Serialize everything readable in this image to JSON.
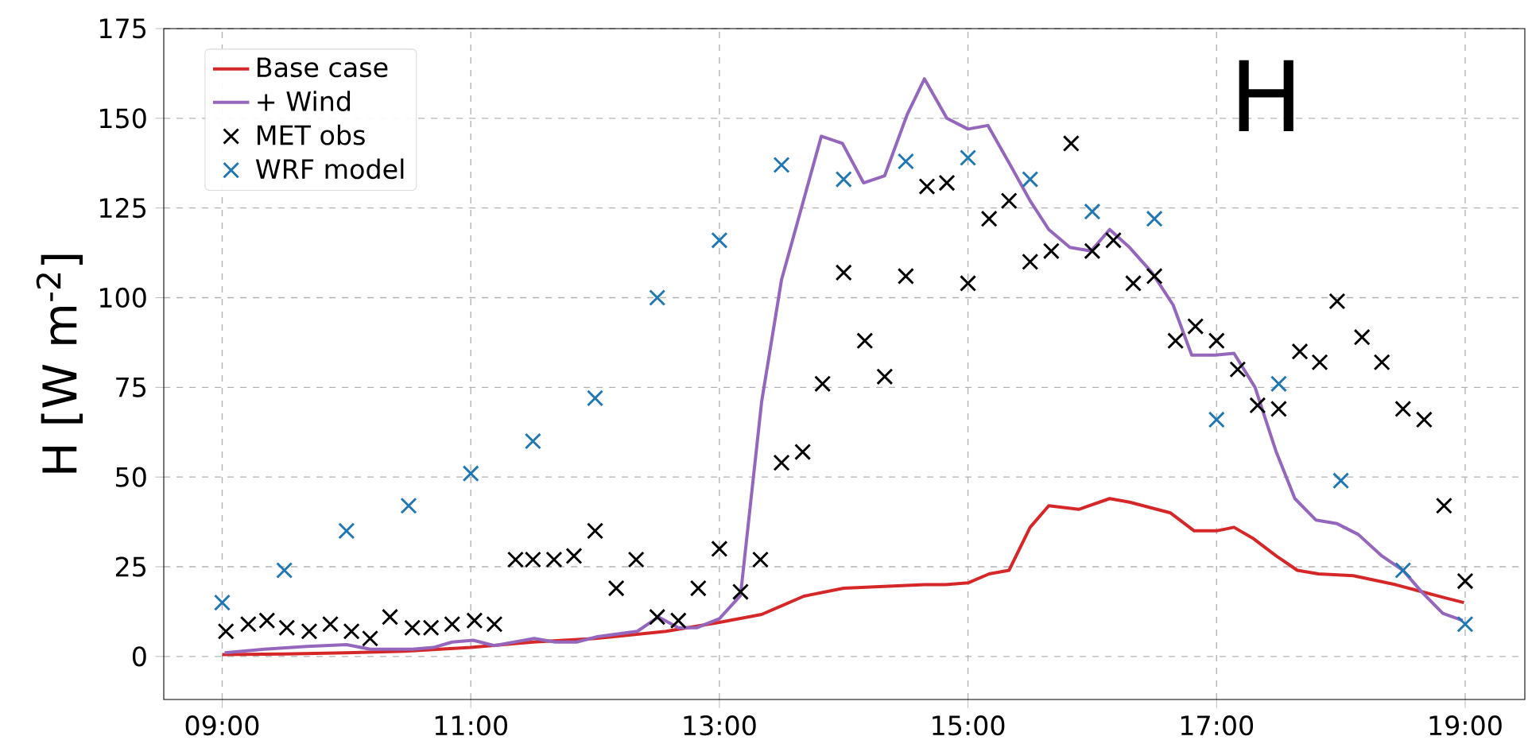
{
  "chart_data": {
    "type": "line",
    "ylabel": "H [W m$^{-2}$]",
    "annotations": [
      "H"
    ],
    "xlim": [
      8.53,
      19.48
    ],
    "ylim": [
      -12,
      175
    ],
    "xticks": [
      {
        "value": 9,
        "label": "09:00"
      },
      {
        "value": 11,
        "label": "11:00"
      },
      {
        "value": 13,
        "label": "13:00"
      },
      {
        "value": 15,
        "label": "15:00"
      },
      {
        "value": 17,
        "label": "17:00"
      },
      {
        "value": 19,
        "label": "19:00"
      }
    ],
    "yticks": [
      0,
      25,
      50,
      75,
      100,
      125,
      150,
      175
    ],
    "grid": true,
    "legend": "top left",
    "series": [
      {
        "name": "Base case",
        "color": "#d62728",
        "line_style": "solid",
        "x": [
          9.0,
          9.5,
          10.0,
          10.5,
          11.0,
          11.5,
          12.0,
          12.57,
          13.0,
          13.34,
          13.68,
          14.0,
          14.65,
          14.82,
          15.0,
          15.17,
          15.33,
          15.5,
          15.65,
          15.89,
          16.14,
          16.3,
          16.63,
          16.82,
          17.0,
          17.14,
          17.29,
          17.48,
          17.65,
          17.82,
          18.1,
          18.44,
          18.82,
          18.99
        ],
        "values": [
          0.5,
          0.7,
          1,
          1.5,
          2.5,
          4,
          5,
          7,
          9.5,
          11.7,
          16.8,
          19,
          20,
          20,
          20.5,
          23,
          24,
          36,
          42,
          41,
          44,
          43,
          40,
          35,
          35,
          36,
          33,
          28,
          24,
          23,
          22.5,
          20,
          16.5,
          15
        ]
      },
      {
        "name": "+ Wind",
        "color": "#9467bd",
        "line_style": "solid",
        "x": [
          9.02,
          9.34,
          9.68,
          10.0,
          10.19,
          10.53,
          10.7,
          10.85,
          11.02,
          11.19,
          11.51,
          11.68,
          11.85,
          12.02,
          12.34,
          12.51,
          12.67,
          12.82,
          13.0,
          13.17,
          13.34,
          13.5,
          13.82,
          13.99,
          14.16,
          14.33,
          14.51,
          14.65,
          14.83,
          15.0,
          15.16,
          15.34,
          15.5,
          15.65,
          15.82,
          15.99,
          16.14,
          16.3,
          16.48,
          16.65,
          16.8,
          16.99,
          17.14,
          17.31,
          17.48,
          17.63,
          17.8,
          17.97,
          18.14,
          18.33,
          18.5,
          18.65,
          18.82,
          18.98
        ],
        "values": [
          1,
          2,
          2.8,
          3.3,
          2,
          2,
          2.5,
          4,
          4.5,
          3,
          5,
          4,
          4,
          5.5,
          7,
          11,
          8,
          8,
          10.5,
          17,
          71,
          105,
          145,
          143,
          132,
          134,
          151,
          161,
          150,
          147,
          148,
          137,
          127,
          119,
          114,
          113,
          119,
          114,
          107,
          98,
          84,
          84,
          84.5,
          75,
          57,
          44,
          38,
          37,
          34,
          28,
          24,
          18,
          12,
          10
        ]
      },
      {
        "name": "MET obs",
        "type": "scatter",
        "color": "#000000",
        "marker": "cross",
        "x": [
          9.03,
          9.21,
          9.36,
          9.52,
          9.7,
          9.87,
          10.04,
          10.19,
          10.35,
          10.53,
          10.68,
          10.85,
          11.03,
          11.19,
          11.36,
          11.5,
          11.67,
          11.83,
          12.0,
          12.17,
          12.33,
          12.5,
          12.67,
          12.83,
          13.0,
          13.17,
          13.33,
          13.5,
          13.67,
          13.83,
          14.0,
          14.17,
          14.33,
          14.5,
          14.67,
          14.83,
          15.0,
          15.17,
          15.33,
          15.5,
          15.67,
          15.83,
          16.0,
          16.17,
          16.33,
          16.5,
          16.67,
          16.83,
          17.0,
          17.17,
          17.33,
          17.5,
          17.67,
          17.83,
          17.97,
          18.17,
          18.33,
          18.5,
          18.67,
          18.83,
          19.0
        ],
        "values": [
          7,
          9,
          10,
          8,
          7,
          9,
          7,
          5,
          11,
          8,
          8,
          9,
          10,
          9,
          27,
          27,
          27,
          28,
          35,
          19,
          27,
          11,
          10,
          19,
          30,
          18,
          27,
          54,
          57,
          76,
          107,
          88,
          78,
          106,
          131,
          132,
          104,
          122,
          127,
          110,
          113,
          143,
          113,
          116,
          104,
          106,
          88,
          92,
          88,
          80,
          70,
          69,
          85,
          82,
          99,
          89,
          82,
          69,
          66,
          42,
          21
        ]
      },
      {
        "name": "WRF model",
        "type": "scatter",
        "color": "#1f77b4",
        "marker": "cross",
        "x": [
          9.0,
          9.5,
          10.0,
          10.5,
          11.0,
          11.5,
          12.0,
          12.5,
          13.0,
          13.5,
          14.0,
          14.5,
          15.0,
          15.5,
          16.0,
          16.5,
          17.0,
          17.5,
          18.0,
          18.5,
          19.0
        ],
        "values": [
          15,
          24,
          35,
          42,
          51,
          60,
          72,
          100,
          116,
          137,
          133,
          138,
          139,
          133,
          124,
          122,
          66,
          76,
          49,
          24,
          9
        ]
      }
    ]
  }
}
